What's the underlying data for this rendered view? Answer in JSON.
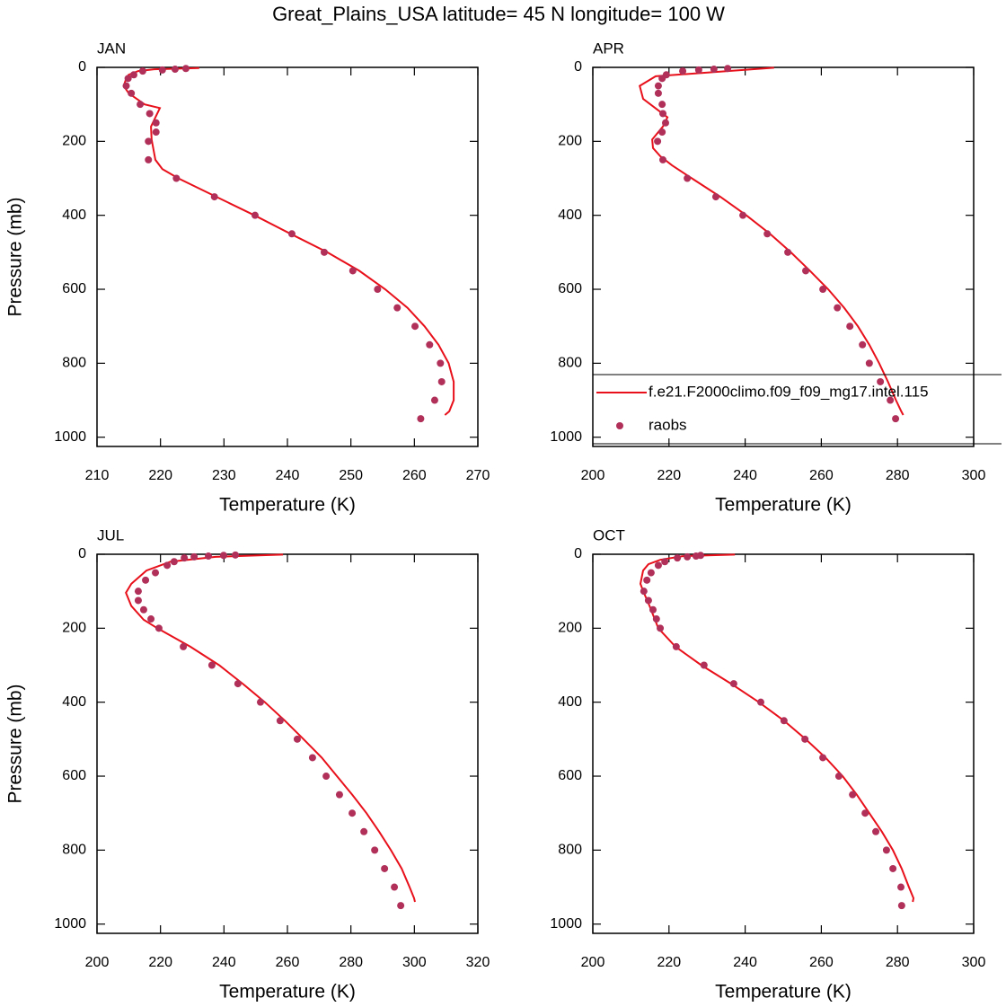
{
  "title": "Great_Plains_USA  latitude= 45 N longitude= 100 W",
  "chart_data": [
    {
      "type": "line",
      "title": "JAN",
      "xlabel": "Temperature (K)",
      "ylabel": "Pressure (mb)",
      "xlim": [
        210,
        270
      ],
      "ylim": [
        1025,
        0
      ],
      "xticks": [
        210,
        220,
        230,
        240,
        250,
        260,
        270
      ],
      "yticks": [
        0,
        200,
        400,
        600,
        800,
        1000
      ],
      "series": [
        {
          "type": "line",
          "color": "#e8101a",
          "x": [
            226.1,
            219.0,
            216.5,
            215.0,
            214.6,
            214.2,
            215.0,
            217.5,
            219.9,
            218.5,
            218.6,
            219.2,
            220.3,
            222.8,
            228.8,
            234.8,
            240.5,
            246.3,
            251.3,
            255.4,
            258.9,
            261.6,
            263.8,
            265.4,
            266.2,
            266.2,
            265.5,
            264.8
          ],
          "y": [
            2,
            5,
            10,
            20,
            30,
            50,
            70,
            100,
            110,
            160,
            195,
            250,
            275,
            300,
            350,
            400,
            450,
            500,
            550,
            600,
            650,
            700,
            750,
            800,
            850,
            900,
            930,
            940
          ]
        },
        {
          "type": "scatter",
          "color": "#b0305a",
          "x": [
            224.0,
            222.3,
            220.3,
            217.2,
            215.8,
            214.9,
            214.6,
            215.4,
            216.8,
            218.3,
            219.3,
            219.3,
            218.1,
            218.1,
            222.5,
            228.5,
            234.9,
            240.7,
            245.8,
            250.3,
            254.2,
            257.3,
            260.1,
            262.4,
            264.1,
            264.3,
            263.2,
            261.0
          ],
          "y": [
            3,
            5,
            7,
            10,
            20,
            30,
            50,
            70,
            100,
            125,
            150,
            175,
            200,
            250,
            300,
            350,
            400,
            450,
            500,
            550,
            600,
            650,
            700,
            750,
            800,
            850,
            900,
            950
          ]
        }
      ]
    },
    {
      "type": "line",
      "title": "APR",
      "xlabel": "Temperature (K)",
      "xlim": [
        200,
        300
      ],
      "ylim": [
        1025,
        0
      ],
      "xticks": [
        200,
        220,
        240,
        260,
        280,
        300
      ],
      "yticks": [
        0,
        200,
        400,
        600,
        800,
        1000
      ],
      "legend": "lower right",
      "series": [
        {
          "type": "line",
          "name": "f.e21.F2000climo.f09_f09_mg17.intel.115",
          "color": "#e8101a",
          "x": [
            247.6,
            233.0,
            216.5,
            212.3,
            213.2,
            217.7,
            219.6,
            218.4,
            215.6,
            215.8,
            217.7,
            220.8,
            226.0,
            233.5,
            240.3,
            246.5,
            252.0,
            257.0,
            261.8,
            266.0,
            269.6,
            272.6,
            275.2,
            277.5,
            279.6,
            281.0,
            281.5
          ],
          "y": [
            1,
            12,
            24,
            50,
            85,
            120,
            135,
            160,
            195,
            218,
            240,
            265,
            300,
            350,
            400,
            450,
            500,
            550,
            600,
            650,
            700,
            750,
            800,
            850,
            900,
            930,
            940
          ]
        },
        {
          "type": "scatter",
          "name": "raobs",
          "color": "#b0305a",
          "x": [
            235.4,
            231.8,
            227.8,
            223.6,
            219.3,
            218.2,
            217.2,
            217.2,
            218.2,
            218.4,
            219.1,
            218.2,
            217.0,
            218.4,
            224.8,
            232.3,
            239.4,
            245.8,
            251.2,
            255.9,
            260.4,
            264.2,
            267.5,
            270.8,
            272.6,
            275.5,
            278.1,
            279.5
          ],
          "y": [
            3,
            5,
            7,
            10,
            20,
            30,
            50,
            70,
            100,
            125,
            150,
            175,
            200,
            250,
            300,
            350,
            400,
            450,
            500,
            550,
            600,
            650,
            700,
            750,
            800,
            850,
            900,
            950
          ]
        }
      ]
    },
    {
      "type": "line",
      "title": "JUL",
      "xlabel": "Temperature (K)",
      "ylabel": "Pressure (mb)",
      "xlim": [
        200,
        320
      ],
      "ylim": [
        1025,
        0
      ],
      "xticks": [
        200,
        220,
        240,
        260,
        280,
        300,
        320
      ],
      "yticks": [
        0,
        200,
        400,
        600,
        800,
        1000
      ],
      "series": [
        {
          "type": "line",
          "color": "#e8101a",
          "x": [
            258.6,
            237.4,
            223.2,
            215.6,
            210.8,
            209.1,
            210.8,
            214.7,
            219.0,
            229.4,
            238.5,
            245.9,
            252.9,
            259.2,
            265.1,
            270.8,
            275.6,
            280.4,
            284.9,
            288.9,
            292.6,
            296.0,
            298.5,
            299.9,
            300.2
          ],
          "y": [
            1,
            7,
            20,
            44,
            80,
            104,
            140,
            177,
            200,
            250,
            300,
            350,
            400,
            450,
            500,
            550,
            600,
            650,
            700,
            750,
            800,
            850,
            900,
            930,
            940
          ]
        },
        {
          "type": "scatter",
          "color": "#b0305a",
          "x": [
            243.6,
            239.9,
            235.1,
            230.6,
            227.5,
            224.3,
            222.1,
            218.4,
            215.3,
            213.0,
            213.0,
            214.7,
            217.0,
            219.5,
            227.2,
            236.2,
            244.4,
            251.5,
            257.7,
            263.1,
            267.9,
            272.2,
            276.4,
            280.4,
            284.1,
            287.5,
            290.6,
            293.7,
            295.7
          ],
          "y": [
            2,
            3,
            5,
            7,
            10,
            20,
            30,
            50,
            70,
            100,
            125,
            150,
            175,
            200,
            250,
            300,
            350,
            400,
            450,
            500,
            550,
            600,
            650,
            700,
            750,
            800,
            850,
            900,
            950
          ]
        }
      ]
    },
    {
      "type": "line",
      "title": "OCT",
      "xlabel": "Temperature (K)",
      "xlim": [
        200,
        300
      ],
      "ylim": [
        1025,
        0
      ],
      "xticks": [
        200,
        220,
        240,
        260,
        280,
        300
      ],
      "yticks": [
        0,
        200,
        400,
        600,
        800,
        1000
      ],
      "series": [
        {
          "type": "line",
          "color": "#e8101a",
          "x": [
            237.3,
            223.6,
            217.7,
            214.6,
            213.2,
            212.5,
            213.4,
            214.9,
            217.2,
            221.7,
            228.5,
            236.3,
            243.6,
            250.2,
            255.9,
            261.1,
            265.6,
            269.3,
            272.6,
            275.9,
            278.8,
            281.1,
            283.0,
            284.2,
            284.0
          ],
          "y": [
            1,
            5,
            15,
            27,
            44,
            80,
            104,
            140,
            200,
            250,
            300,
            350,
            400,
            450,
            500,
            550,
            600,
            650,
            700,
            750,
            800,
            850,
            900,
            930,
            940
          ]
        },
        {
          "type": "scatter",
          "color": "#b0305a",
          "x": [
            228.3,
            227.1,
            224.8,
            222.2,
            218.9,
            217.2,
            215.3,
            214.2,
            213.4,
            214.6,
            215.8,
            216.7,
            217.7,
            221.9,
            229.2,
            237.0,
            244.1,
            250.2,
            255.7,
            260.4,
            264.6,
            268.2,
            271.5,
            274.3,
            277.1,
            278.8,
            280.9,
            281.1
          ],
          "y": [
            3,
            5,
            7,
            10,
            20,
            30,
            50,
            70,
            100,
            125,
            150,
            175,
            200,
            250,
            300,
            350,
            400,
            450,
            500,
            550,
            600,
            650,
            700,
            750,
            800,
            850,
            900,
            950
          ]
        }
      ]
    }
  ]
}
